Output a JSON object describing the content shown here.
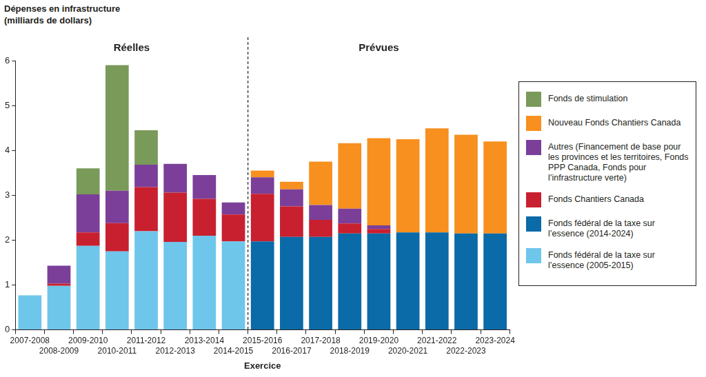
{
  "chart_data": {
    "type": "bar",
    "stacked": true,
    "grid": false,
    "legend": "right",
    "y_label": [
      "Dépenses en infrastructure",
      "(milliards de dollars)"
    ],
    "x_label": "Exercice",
    "annotations": [
      {
        "text": "Réelles",
        "categories": [
          "2007-2008",
          "2014-2015"
        ]
      },
      {
        "text": "Prévues",
        "categories": [
          "2015-2016",
          "2023-2024"
        ]
      }
    ],
    "categories": [
      "2007-2008",
      "2008-2009",
      "2009-2010",
      "2010-2011",
      "2011-2012",
      "2012-2013",
      "2013-2014",
      "2014-2015",
      "2015-2016",
      "2016-2017",
      "2017-2018",
      "2018-2019",
      "2019-2020",
      "2020-2021",
      "2021-2022",
      "2022-2023",
      "2023-2024"
    ],
    "series": [
      {
        "name": "Fonds fédéral de la taxe sur l’essence (2005-2015)",
        "color": "#6ec6ea",
        "values": [
          0.77,
          0.98,
          1.87,
          1.75,
          2.2,
          1.96,
          2.1,
          1.97,
          null,
          null,
          null,
          null,
          null,
          null,
          null,
          null,
          null
        ]
      },
      {
        "name": "Fonds fédéral de la taxe sur l’essence (2014-2024)",
        "color": "#0b6aa8",
        "values": [
          null,
          null,
          null,
          null,
          null,
          null,
          null,
          null,
          1.97,
          2.07,
          2.07,
          2.15,
          2.15,
          2.17,
          2.17,
          2.15,
          2.15
        ]
      },
      {
        "name": "Fonds Chantiers Canada",
        "color": "#c8202f",
        "values": [
          null,
          0.05,
          0.3,
          0.63,
          0.98,
          1.1,
          0.82,
          0.6,
          1.06,
          0.68,
          0.38,
          0.22,
          0.1,
          null,
          null,
          null,
          null
        ]
      },
      {
        "name": "Autres (Financement de base pour les provinces et les territoires, Fonds PPP Canada, Fonds pour l’infrastructure verte)",
        "color": "#7b3f99",
        "values": [
          null,
          0.4,
          0.85,
          0.72,
          0.5,
          0.64,
          0.53,
          0.27,
          0.37,
          0.38,
          0.33,
          0.33,
          0.08,
          null,
          null,
          null,
          null
        ]
      },
      {
        "name": "Nouveau Fonds Chantiers Canada",
        "color": "#f7901e",
        "values": [
          null,
          null,
          null,
          null,
          null,
          null,
          null,
          null,
          0.15,
          0.17,
          0.97,
          1.46,
          1.94,
          2.08,
          2.32,
          2.2,
          2.05
        ]
      },
      {
        "name": "Fonds de stimulation",
        "color": "#7a9a5a",
        "values": [
          null,
          null,
          0.58,
          2.8,
          0.77,
          null,
          null,
          null,
          null,
          null,
          null,
          null,
          null,
          null,
          null,
          null,
          null
        ]
      }
    ],
    "ylim": [
      0,
      6
    ],
    "yticks": [
      0,
      1,
      2,
      3,
      4,
      5,
      6
    ]
  }
}
